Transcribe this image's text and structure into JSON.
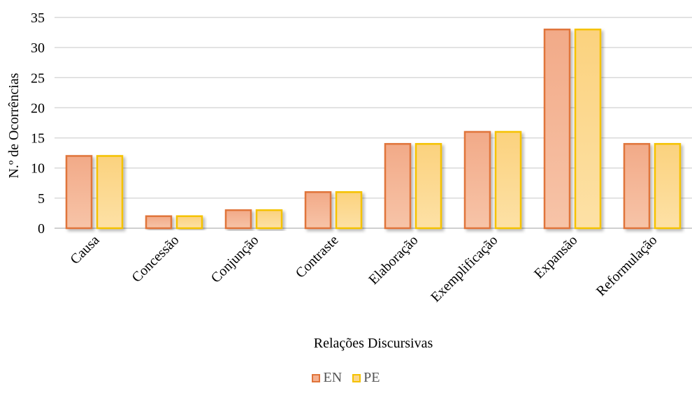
{
  "chart_data": {
    "type": "bar",
    "title": "",
    "xlabel": "Relações Discursivas",
    "ylabel": "N.º de Ocorrências",
    "ylim": [
      0,
      35
    ],
    "yticks": [
      0,
      5,
      10,
      15,
      20,
      25,
      30,
      35
    ],
    "grid": true,
    "legend_position": "bottom",
    "categories": [
      "Causa",
      "Concessão",
      "Conjunção",
      "Contraste",
      "Elaboração",
      "Exemplificação",
      "Expansão",
      "Reformulação"
    ],
    "series": [
      {
        "name": "EN",
        "values": [
          12,
          2,
          3,
          6,
          14,
          16,
          33,
          14
        ],
        "fill": "#f4b090",
        "stroke": "#e0743a"
      },
      {
        "name": "PE",
        "values": [
          12,
          2,
          3,
          6,
          14,
          16,
          33,
          14
        ],
        "fill": "#fcd68a",
        "stroke": "#f5c200"
      }
    ]
  }
}
